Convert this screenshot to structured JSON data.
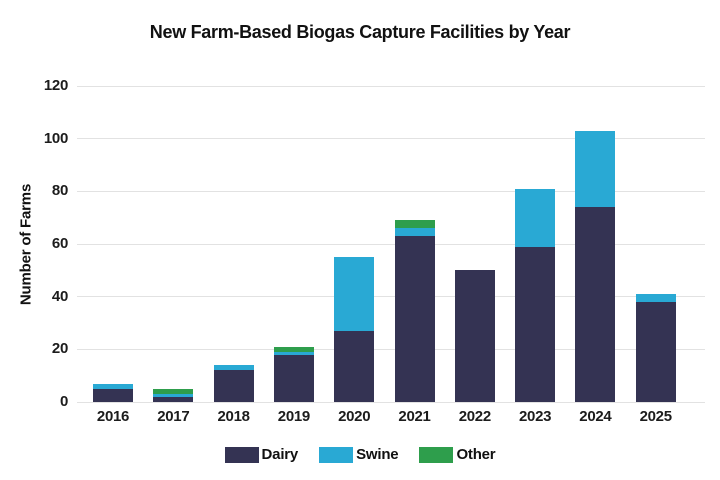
{
  "chart_data": {
    "type": "bar",
    "stacked": true,
    "title": "New Farm-Based Biogas Capture Facilities by Year",
    "ylabel": "Number of Farms",
    "xlabel": "",
    "categories": [
      "2016",
      "2017",
      "2018",
      "2019",
      "2020",
      "2021",
      "2022",
      "2023",
      "2024",
      "2025"
    ],
    "series": [
      {
        "name": "Dairy",
        "color": "#343353",
        "values": [
          5,
          2,
          12,
          18,
          27,
          63,
          50,
          59,
          74,
          38
        ]
      },
      {
        "name": "Swine",
        "color": "#29a9d4",
        "values": [
          2,
          1,
          2,
          1,
          28,
          3,
          0,
          22,
          29,
          3
        ]
      },
      {
        "name": "Other",
        "color": "#2e9e4c",
        "values": [
          0,
          2,
          0,
          2,
          0,
          3,
          0,
          0,
          0,
          0
        ]
      }
    ],
    "totals": [
      7,
      5,
      14,
      21,
      55,
      69,
      50,
      81,
      103,
      41
    ],
    "ylim": [
      0,
      120
    ],
    "yticks": [
      0,
      20,
      40,
      60,
      80,
      100,
      120
    ],
    "grid": true,
    "legend_position": "bottom",
    "legend": [
      "Dairy",
      "Swine",
      "Other"
    ]
  },
  "colors": {
    "background": "#ffffff",
    "grid": "#e2e2e2",
    "text": "#1c1c1c",
    "dairy": "#343353",
    "swine": "#29a9d4",
    "other": "#2e9e4c"
  }
}
